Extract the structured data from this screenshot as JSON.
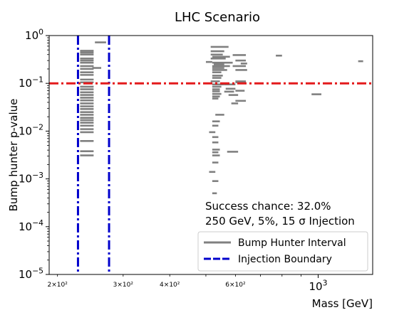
{
  "chart_data": {
    "type": "scatter",
    "title": "LHC Scenario",
    "xlabel": "Mass [GeV]",
    "ylabel": "Bump hunter p-value",
    "x_scale": "log",
    "y_scale": "log",
    "xlim": [
      190,
      1400
    ],
    "ylim": [
      1e-05,
      1
    ],
    "x_major_ticks": [
      {
        "value": 1000,
        "base": "10",
        "exp": "3"
      }
    ],
    "x_minor_ticks": [
      {
        "value": 200,
        "label": "2×10²"
      },
      {
        "value": 300,
        "label": "3×10²"
      },
      {
        "value": 400,
        "label": "4×10²"
      },
      {
        "value": 600,
        "label": "6×10²"
      }
    ],
    "y_ticks": [
      {
        "value": 1,
        "base": "10",
        "exp": "0"
      },
      {
        "value": 0.1,
        "base": "10",
        "exp": "−1"
      },
      {
        "value": 0.01,
        "base": "10",
        "exp": "−2"
      },
      {
        "value": 0.001,
        "base": "10",
        "exp": "−3"
      },
      {
        "value": 0.0001,
        "base": "10",
        "exp": "−4"
      },
      {
        "value": 1e-05,
        "base": "10",
        "exp": "−5"
      }
    ],
    "threshold": {
      "p_value": 0.1,
      "color": "#e31a1c"
    },
    "injection_boundaries": [
      227,
      275
    ],
    "annotation_lines": [
      "Success chance: 32.0%",
      "250 GeV, 5%, 15 σ Injection"
    ],
    "legend": {
      "placement": "lower-right",
      "entries": [
        {
          "label": "Bump Hunter Interval",
          "color": "#808080",
          "style": "solid"
        },
        {
          "label": "Injection Boundary",
          "color": "#0000cc",
          "style": "dashdot"
        }
      ]
    },
    "colors": {
      "interval": "#808080",
      "boundary": "#0000cc",
      "threshold": "#e31a1c"
    },
    "series": [
      {
        "intervals": [
          {
            "x0": 230,
            "x1": 250,
            "p": 0.48
          },
          {
            "x0": 230,
            "x1": 250,
            "p": 0.44
          },
          {
            "x0": 230,
            "x1": 250,
            "p": 0.4
          },
          {
            "x0": 230,
            "x1": 250,
            "p": 0.33
          },
          {
            "x0": 230,
            "x1": 250,
            "p": 0.3
          },
          {
            "x0": 230,
            "x1": 250,
            "p": 0.27
          },
          {
            "x0": 230,
            "x1": 250,
            "p": 0.23
          },
          {
            "x0": 230,
            "x1": 250,
            "p": 0.2
          },
          {
            "x0": 230,
            "x1": 250,
            "p": 0.17
          },
          {
            "x0": 230,
            "x1": 250,
            "p": 0.15
          },
          {
            "x0": 230,
            "x1": 250,
            "p": 0.12
          },
          {
            "x0": 230,
            "x1": 250,
            "p": 0.105
          },
          {
            "x0": 230,
            "x1": 250,
            "p": 0.085
          },
          {
            "x0": 230,
            "x1": 250,
            "p": 0.075
          },
          {
            "x0": 230,
            "x1": 250,
            "p": 0.065
          },
          {
            "x0": 230,
            "x1": 250,
            "p": 0.057
          },
          {
            "x0": 230,
            "x1": 250,
            "p": 0.05
          },
          {
            "x0": 230,
            "x1": 250,
            "p": 0.044
          },
          {
            "x0": 230,
            "x1": 250,
            "p": 0.038
          },
          {
            "x0": 230,
            "x1": 250,
            "p": 0.033
          },
          {
            "x0": 230,
            "x1": 250,
            "p": 0.029
          },
          {
            "x0": 230,
            "x1": 250,
            "p": 0.025
          },
          {
            "x0": 230,
            "x1": 250,
            "p": 0.022
          },
          {
            "x0": 230,
            "x1": 250,
            "p": 0.019
          },
          {
            "x0": 230,
            "x1": 250,
            "p": 0.017
          },
          {
            "x0": 230,
            "x1": 250,
            "p": 0.015
          },
          {
            "x0": 230,
            "x1": 250,
            "p": 0.013
          },
          {
            "x0": 230,
            "x1": 250,
            "p": 0.011
          },
          {
            "x0": 230,
            "x1": 250,
            "p": 0.0095
          },
          {
            "x0": 230,
            "x1": 250,
            "p": 0.0062
          },
          {
            "x0": 230,
            "x1": 250,
            "p": 0.0038
          },
          {
            "x0": 230,
            "x1": 250,
            "p": 0.0031
          },
          {
            "x0": 252,
            "x1": 270,
            "p": 0.72
          },
          {
            "x0": 248,
            "x1": 262,
            "p": 0.21
          },
          {
            "x0": 515,
            "x1": 575,
            "p": 0.58
          },
          {
            "x0": 515,
            "x1": 560,
            "p": 0.47
          },
          {
            "x0": 515,
            "x1": 555,
            "p": 0.4
          },
          {
            "x0": 520,
            "x1": 580,
            "p": 0.36
          },
          {
            "x0": 515,
            "x1": 565,
            "p": 0.33
          },
          {
            "x0": 500,
            "x1": 520,
            "p": 0.28
          },
          {
            "x0": 520,
            "x1": 590,
            "p": 0.27
          },
          {
            "x0": 525,
            "x1": 560,
            "p": 0.25
          },
          {
            "x0": 520,
            "x1": 580,
            "p": 0.23
          },
          {
            "x0": 520,
            "x1": 560,
            "p": 0.21
          },
          {
            "x0": 520,
            "x1": 570,
            "p": 0.19
          },
          {
            "x0": 520,
            "x1": 550,
            "p": 0.17
          },
          {
            "x0": 520,
            "x1": 555,
            "p": 0.145
          },
          {
            "x0": 520,
            "x1": 550,
            "p": 0.13
          },
          {
            "x0": 515,
            "x1": 545,
            "p": 0.11
          },
          {
            "x0": 520,
            "x1": 560,
            "p": 0.095
          },
          {
            "x0": 520,
            "x1": 550,
            "p": 0.085
          },
          {
            "x0": 520,
            "x1": 545,
            "p": 0.075
          },
          {
            "x0": 520,
            "x1": 545,
            "p": 0.068
          },
          {
            "x0": 520,
            "x1": 550,
            "p": 0.06
          },
          {
            "x0": 520,
            "x1": 545,
            "p": 0.053
          },
          {
            "x0": 520,
            "x1": 540,
            "p": 0.048
          },
          {
            "x0": 530,
            "x1": 560,
            "p": 0.022
          },
          {
            "x0": 520,
            "x1": 545,
            "p": 0.016
          },
          {
            "x0": 520,
            "x1": 540,
            "p": 0.013
          },
          {
            "x0": 510,
            "x1": 530,
            "p": 0.0095
          },
          {
            "x0": 520,
            "x1": 540,
            "p": 0.0075
          },
          {
            "x0": 520,
            "x1": 540,
            "p": 0.0058
          },
          {
            "x0": 520,
            "x1": 545,
            "p": 0.0041
          },
          {
            "x0": 520,
            "x1": 540,
            "p": 0.0036
          },
          {
            "x0": 520,
            "x1": 545,
            "p": 0.0031
          },
          {
            "x0": 520,
            "x1": 540,
            "p": 0.0022
          },
          {
            "x0": 510,
            "x1": 530,
            "p": 0.0014
          },
          {
            "x0": 520,
            "x1": 540,
            "p": 0.0009
          },
          {
            "x0": 520,
            "x1": 535,
            "p": 0.0005
          },
          {
            "x0": 560,
            "x1": 600,
            "p": 0.095
          },
          {
            "x0": 565,
            "x1": 600,
            "p": 0.077
          },
          {
            "x0": 560,
            "x1": 595,
            "p": 0.067
          },
          {
            "x0": 575,
            "x1": 610,
            "p": 0.057
          },
          {
            "x0": 600,
            "x1": 640,
            "p": 0.043
          },
          {
            "x0": 585,
            "x1": 610,
            "p": 0.038
          },
          {
            "x0": 570,
            "x1": 610,
            "p": 0.0037
          },
          {
            "x0": 590,
            "x1": 640,
            "p": 0.39
          },
          {
            "x0": 600,
            "x1": 640,
            "p": 0.3
          },
          {
            "x0": 590,
            "x1": 640,
            "p": 0.23
          },
          {
            "x0": 600,
            "x1": 645,
            "p": 0.19
          },
          {
            "x0": 600,
            "x1": 640,
            "p": 0.11
          },
          {
            "x0": 600,
            "x1": 640,
            "p": 0.105
          },
          {
            "x0": 600,
            "x1": 635,
            "p": 0.07
          },
          {
            "x0": 620,
            "x1": 645,
            "p": 0.26
          },
          {
            "x0": 770,
            "x1": 800,
            "p": 0.38
          },
          {
            "x0": 960,
            "x1": 1020,
            "p": 0.059
          },
          {
            "x0": 1280,
            "x1": 1320,
            "p": 0.29
          }
        ]
      }
    ]
  }
}
